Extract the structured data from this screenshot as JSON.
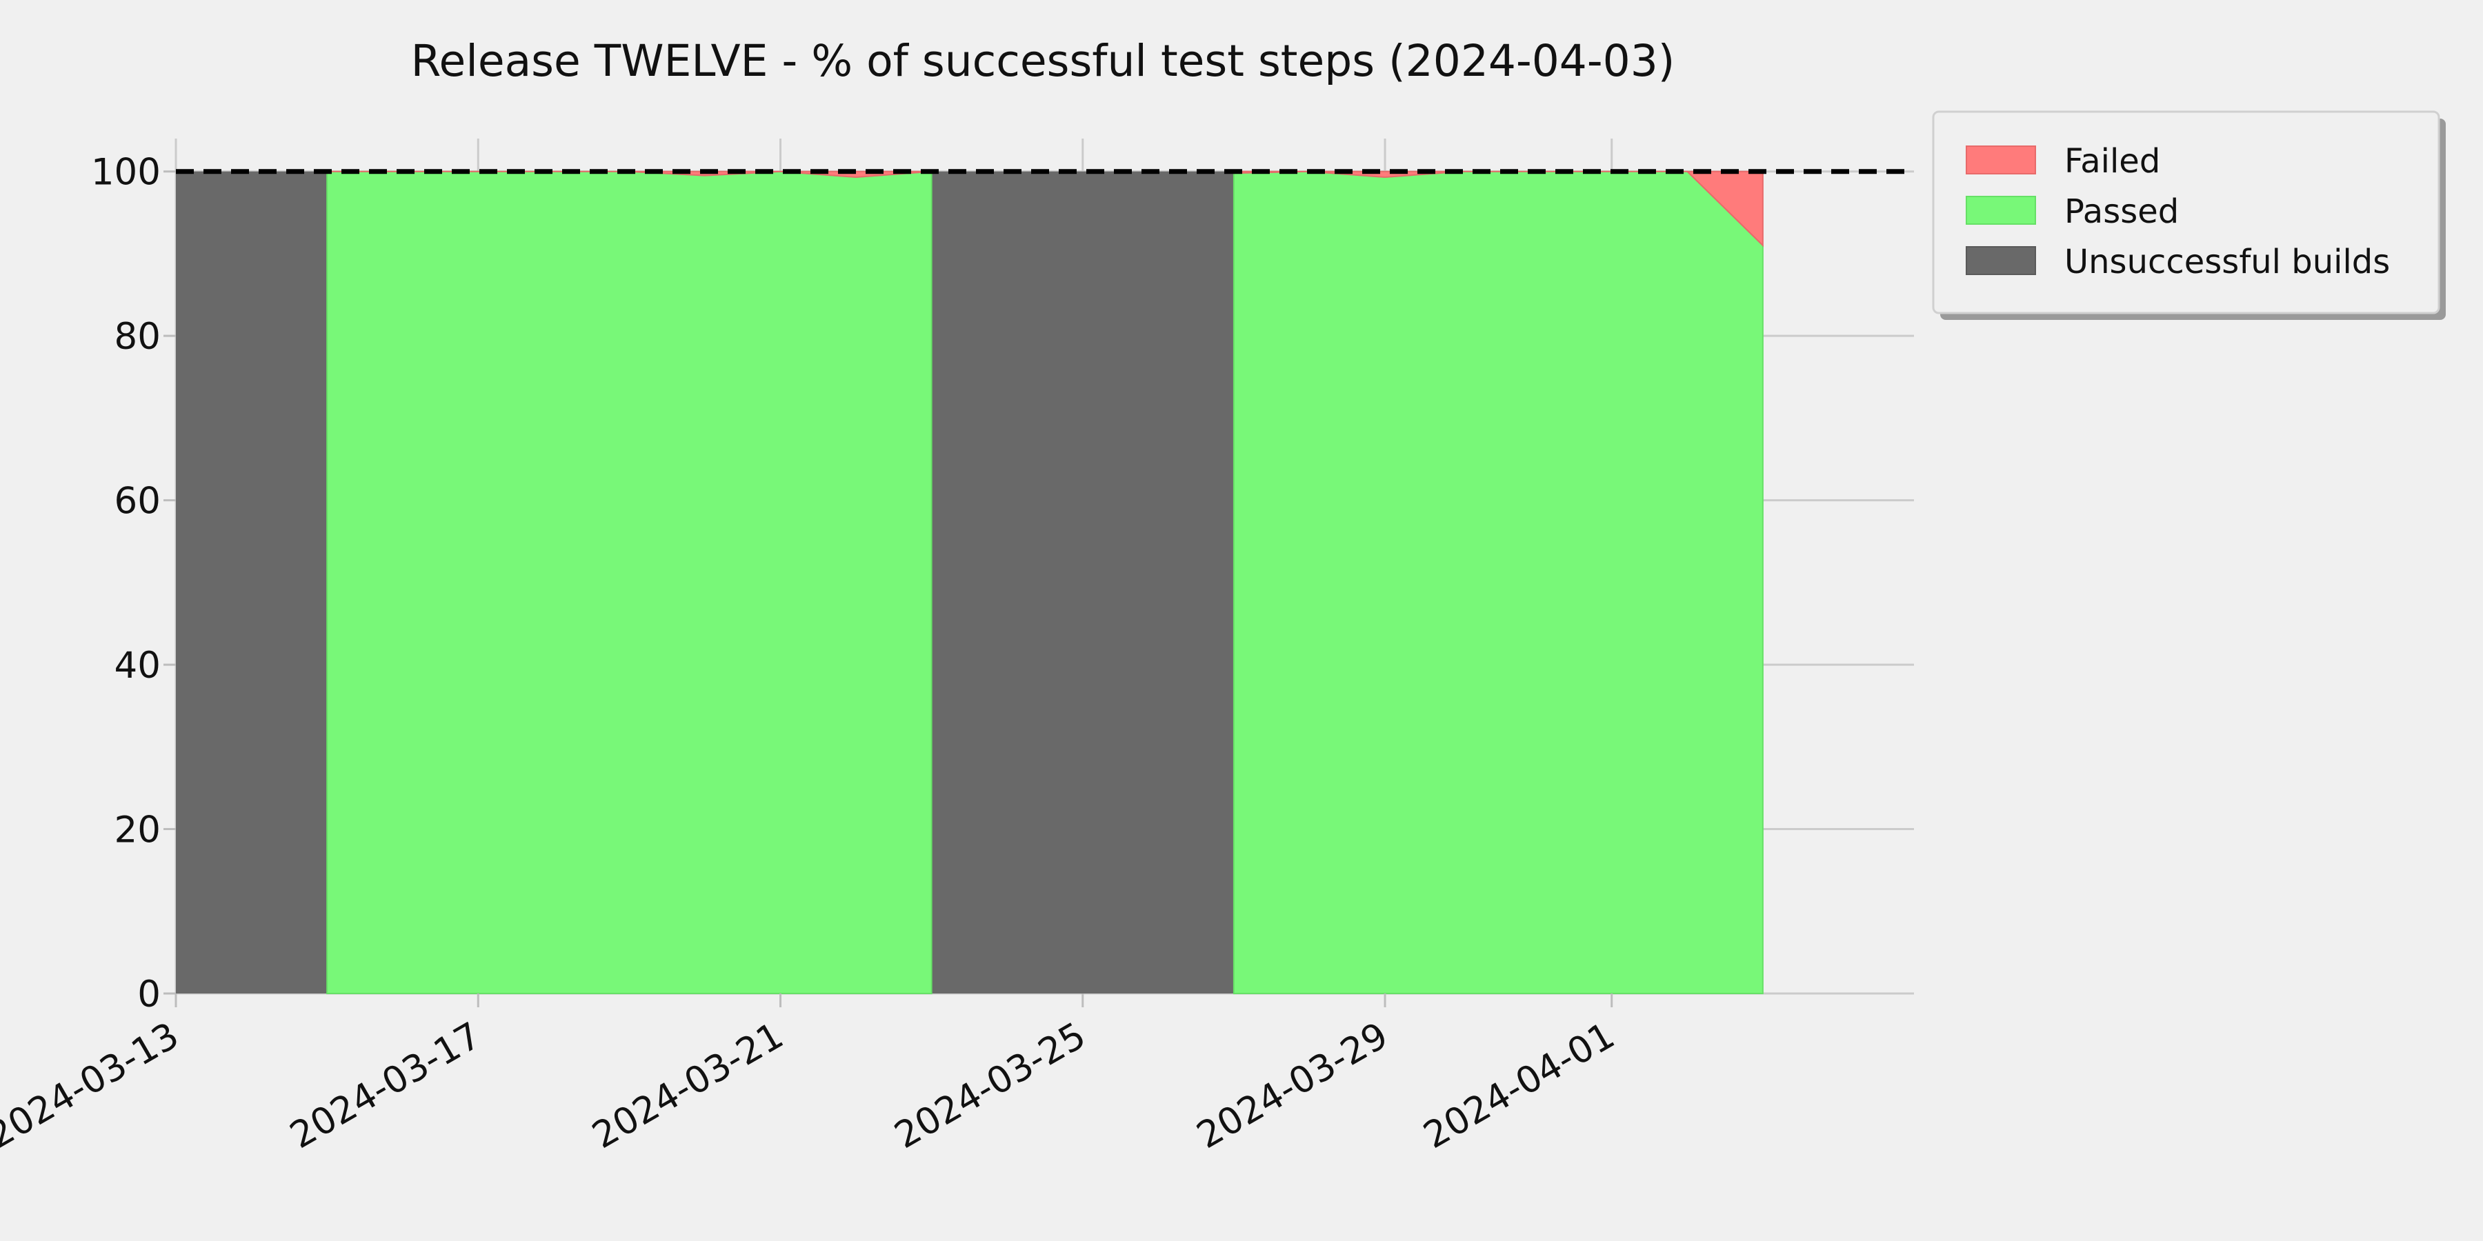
{
  "chart_data": {
    "type": "area",
    "title": "Release TWELVE - % of successful test steps (2024-04-03)",
    "xlabel": "",
    "ylabel": "",
    "x_type": "date",
    "xlim": [
      "2024-03-13",
      "2024-04-05"
    ],
    "ylim": [
      0,
      104
    ],
    "grid": true,
    "legend_position": "top-right, outside plot",
    "x_ticks": [
      "2024-03-13",
      "2024-03-17",
      "2024-03-21",
      "2024-03-25",
      "2024-03-29",
      "2024-04-01"
    ],
    "y_ticks": [
      0,
      20,
      40,
      60,
      80,
      100
    ],
    "reference_line": {
      "y": 100,
      "style": "dashed",
      "color": "#000000"
    },
    "colors": {
      "failed": "#ff7b7b",
      "passed": "#78f878",
      "unsuccessful": "#696969",
      "background": "#f0f0f0"
    },
    "series": [
      {
        "name": "Unsuccessful builds",
        "color": "#696969",
        "spans": [
          {
            "start": "2024-03-13",
            "end": "2024-03-15"
          },
          {
            "start": "2024-03-23",
            "end": "2024-03-27"
          }
        ]
      },
      {
        "name": "Passed",
        "color": "#78f878",
        "x": [
          "2024-03-15",
          "2024-03-16",
          "2024-03-17",
          "2024-03-18",
          "2024-03-19",
          "2024-03-20",
          "2024-03-21",
          "2024-03-22",
          "2024-03-23",
          "2024-03-27",
          "2024-03-28",
          "2024-03-29",
          "2024-03-30",
          "2024-03-31",
          "2024-04-01",
          "2024-04-02",
          "2024-04-03"
        ],
        "values": [
          100,
          100,
          100,
          100,
          100,
          99.5,
          100,
          99.3,
          100,
          99.8,
          100,
          99.3,
          100,
          100,
          100,
          100,
          91
        ]
      },
      {
        "name": "Failed",
        "color": "#ff7b7b",
        "x": [
          "2024-03-15",
          "2024-03-16",
          "2024-03-17",
          "2024-03-18",
          "2024-03-19",
          "2024-03-20",
          "2024-03-21",
          "2024-03-22",
          "2024-03-23",
          "2024-03-27",
          "2024-03-28",
          "2024-03-29",
          "2024-03-30",
          "2024-03-31",
          "2024-04-01",
          "2024-04-02",
          "2024-04-03"
        ],
        "values": [
          0,
          0,
          0,
          0,
          0,
          0.5,
          0,
          0.7,
          0,
          0.2,
          0,
          0.7,
          0,
          0,
          0,
          0,
          9
        ]
      }
    ],
    "legend": [
      "Failed",
      "Passed",
      "Unsuccessful builds"
    ]
  }
}
